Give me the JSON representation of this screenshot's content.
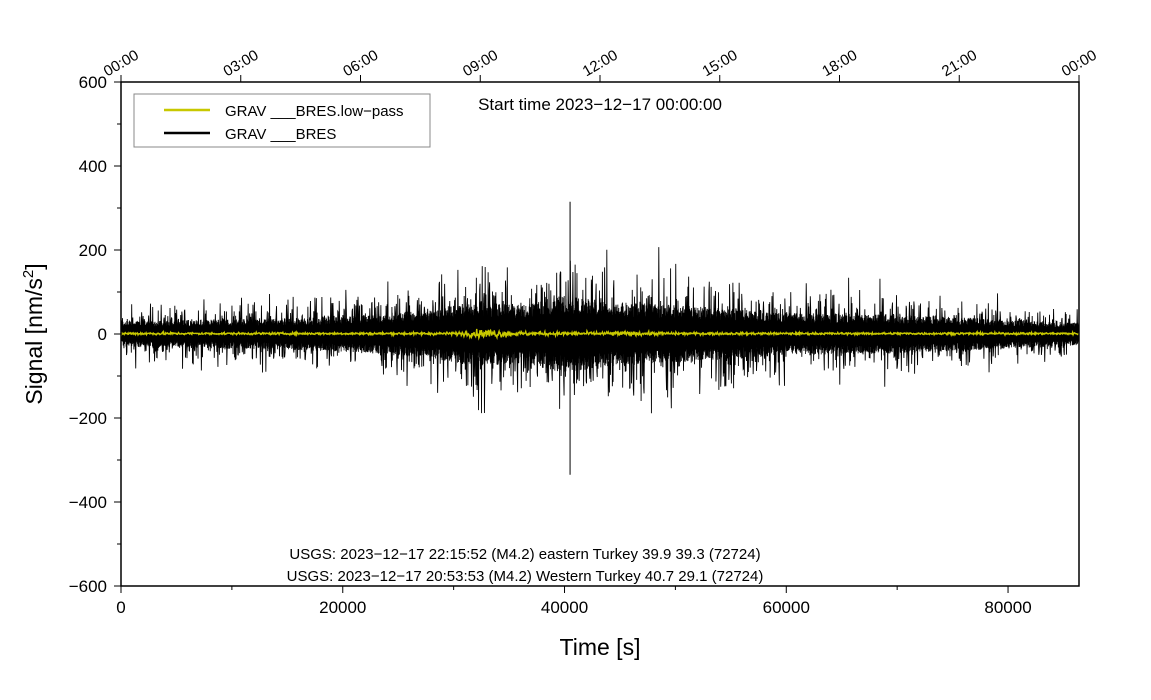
{
  "chart_data": {
    "type": "line",
    "title": "Start time 2023−12−17 00:00:00",
    "xlabel": "Time [s]",
    "ylabel_main": "Signal [nm/s",
    "ylabel_sup": "2",
    "ylabel_close": "]",
    "xlim": [
      0,
      86400
    ],
    "ylim": [
      -600,
      600
    ],
    "x_ticks": [
      0,
      20000,
      40000,
      60000,
      80000
    ],
    "x_tick_labels": [
      "0",
      "20000",
      "40000",
      "60000",
      "80000"
    ],
    "y_ticks": [
      -600,
      -400,
      -200,
      0,
      200,
      400,
      600
    ],
    "y_tick_labels": [
      "−600",
      "−400",
      "−200",
      "0",
      "200",
      "400",
      "600"
    ],
    "top_ticks": [
      0,
      10800,
      21600,
      32400,
      43200,
      54000,
      64800,
      75600,
      86400
    ],
    "top_tick_labels": [
      "00:00",
      "03:00",
      "06:00",
      "09:00",
      "12:00",
      "15:00",
      "18:00",
      "21:00",
      "00:00"
    ],
    "legend_position": "top-left",
    "series": [
      {
        "name": "GRAV ___BRES.low−pass",
        "color": "#c8c800",
        "description": "low-pass filtered, near zero, peak ~±15 around 33000 s",
        "envelope_x": [
          0,
          10000,
          20000,
          30000,
          33000,
          36000,
          40000,
          46000,
          50000,
          60000,
          70000,
          80000,
          86400
        ],
        "envelope_y": [
          4,
          3,
          3,
          4,
          14,
          6,
          5,
          6,
          4,
          3,
          3,
          3,
          3
        ]
      },
      {
        "name": "GRAV ___BRES",
        "color": "#000000",
        "description": "raw gravity signal",
        "envelope_x": [
          0,
          10000,
          20000,
          28000,
          32000,
          36000,
          40000,
          44000,
          50000,
          60000,
          70000,
          80000,
          86400
        ],
        "envelope_y": [
          80,
          90,
          110,
          150,
          200,
          180,
          240,
          200,
          180,
          130,
          120,
          90,
          70
        ],
        "peak_max": {
          "x": 40500,
          "y": 315
        },
        "peak_min": {
          "x": 40500,
          "y": -335
        }
      }
    ],
    "annotations": [
      "USGS: 2023−12−17 22:15:52 (M4.2) eastern Turkey 39.9 39.3 (72724)",
      "USGS: 2023−12−17 20:53:53 (M4.2) Western Turkey 40.7 29.1 (72724)"
    ]
  }
}
